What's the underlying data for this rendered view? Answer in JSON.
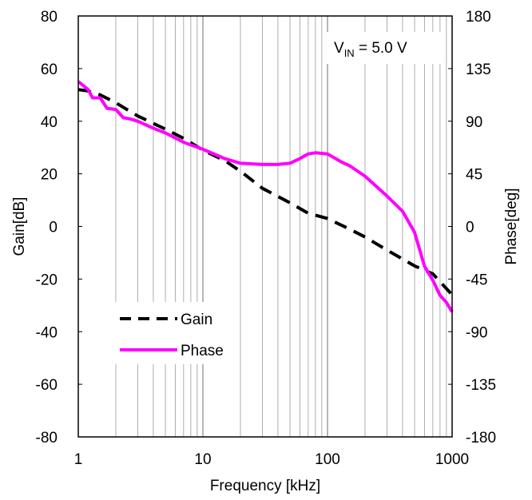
{
  "chart_data": {
    "type": "line",
    "title": "",
    "annotation": {
      "prefix": "V",
      "subscript": "IN",
      "suffix": " = 5.0 V"
    },
    "xlabel": "Frequency [kHz]",
    "ylabel_left": "Gain[dB]",
    "ylabel_right": "Phase[deg]",
    "x_scale": "log",
    "xlim": [
      1,
      1000
    ],
    "ylim_left": [
      -80,
      80
    ],
    "ylim_right": [
      -180,
      180
    ],
    "grid": true,
    "legend_position": "lower-left",
    "x_ticks": [
      "1",
      "10",
      "100",
      "1000"
    ],
    "y_ticks_left": [
      "80",
      "60",
      "40",
      "20",
      "0",
      "-20",
      "-40",
      "-60",
      "-80"
    ],
    "y_ticks_right": [
      "180",
      "135",
      "90",
      "45",
      "0",
      "-45",
      "-90",
      "-135",
      "-180"
    ],
    "series": [
      {
        "name": "Gain",
        "axis": "left",
        "color": "#000000",
        "style": "dashed",
        "x": [
          1,
          1.2,
          1.5,
          2,
          3,
          5,
          7,
          10,
          15,
          20,
          30,
          50,
          70,
          100,
          150,
          200,
          300,
          500,
          700,
          1000
        ],
        "y": [
          52,
          51.5,
          50,
          47,
          42,
          37,
          33.5,
          29,
          25,
          21,
          14.5,
          9,
          5,
          3,
          -1,
          -4,
          -9,
          -15,
          -18,
          -26
        ]
      },
      {
        "name": "Phase",
        "axis": "right",
        "color": "#ff00ff",
        "style": "solid",
        "x": [
          1,
          1.2,
          1.3,
          1.5,
          1.7,
          2,
          2.3,
          2.6,
          3,
          4,
          5,
          7,
          10,
          15,
          20,
          30,
          40,
          50,
          60,
          70,
          80,
          100,
          130,
          150,
          200,
          300,
          400,
          500,
          600,
          700,
          800,
          900,
          1000
        ],
        "y": [
          124,
          117,
          110,
          110,
          101,
          100,
          93,
          92,
          90,
          84,
          80,
          72,
          66,
          58,
          54,
          53,
          53,
          54,
          58,
          62,
          63,
          62,
          55,
          52,
          43,
          26,
          13,
          -5,
          -34,
          -46,
          -59,
          -65,
          -73
        ]
      }
    ]
  },
  "legend": {
    "gain_label": "Gain",
    "phase_label": "Phase"
  }
}
